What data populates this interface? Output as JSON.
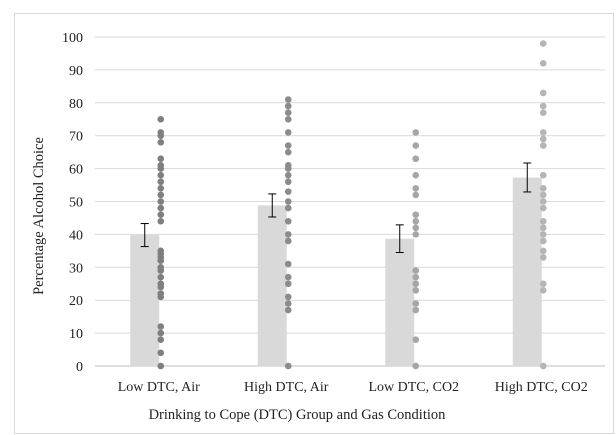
{
  "chart_data": {
    "type": "bar",
    "title": "",
    "xlabel": "Drinking to Cope (DTC) Group and Gas Condition",
    "ylabel": "Percentage Alcohol Choice",
    "ylim": [
      0,
      100
    ],
    "yticks": [
      0,
      10,
      20,
      30,
      40,
      50,
      60,
      70,
      80,
      90,
      100
    ],
    "grid": true,
    "categories": [
      "Low DTC, Air",
      "High DTC, Air",
      "Low DTC, CO2",
      "High DTC, CO2"
    ],
    "series": [
      {
        "values": [
          39.8,
          48.8,
          38.7,
          57.3
        ],
        "error": [
          3.5,
          3.5,
          4.2,
          4.4
        ]
      }
    ],
    "points": [
      [
        0,
        4,
        8,
        10,
        12,
        21,
        22,
        24,
        25,
        27,
        29,
        30,
        32,
        33,
        34,
        35,
        44,
        46,
        48,
        50,
        52,
        54,
        56,
        58,
        60,
        61,
        63,
        68,
        70,
        71,
        75
      ],
      [
        0,
        17,
        19,
        21,
        25,
        27,
        31,
        38,
        40,
        44,
        48,
        50,
        53,
        56,
        58,
        60,
        61,
        65,
        67,
        71,
        75,
        77,
        79,
        81
      ],
      [
        0,
        8,
        17,
        19,
        23,
        25,
        27,
        29,
        40,
        42,
        44,
        46,
        52,
        54,
        58,
        63,
        67,
        71
      ],
      [
        0,
        23,
        25,
        33,
        35,
        38,
        40,
        42,
        44,
        48,
        50,
        52,
        54,
        58,
        67,
        69,
        71,
        77,
        79,
        83,
        92,
        98
      ]
    ],
    "colors": {
      "bar": "#d9d9d9",
      "grid": "#d9d9d9",
      "points": [
        "#7f7f7f",
        "#8c8c8c",
        "#a6a6a6",
        "#b5b5b5"
      ],
      "error_bar": "#000000"
    }
  }
}
